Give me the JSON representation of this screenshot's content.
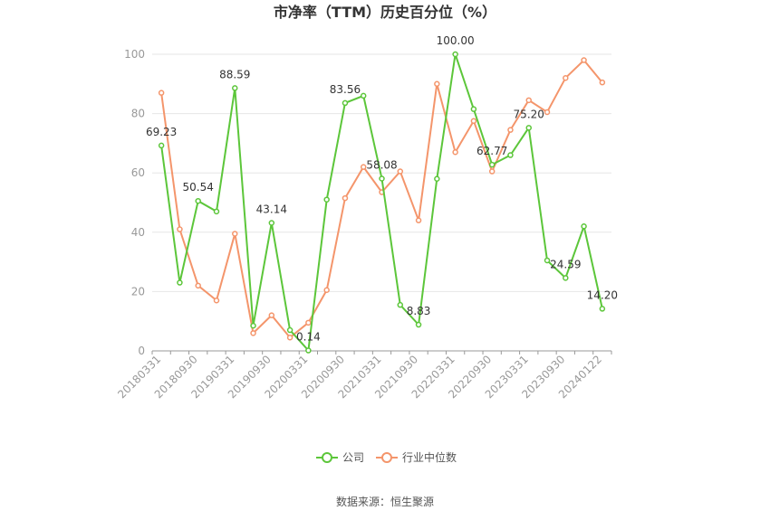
{
  "chart_data": {
    "type": "line",
    "title": "市净率（TTM）历史百分位（%）",
    "x": [
      "20180331",
      "20180630",
      "20180930",
      "20181231",
      "20190331",
      "20190630",
      "20190930",
      "20191231",
      "20200331",
      "20200630",
      "20200930",
      "20201231",
      "20210331",
      "20210630",
      "20210930",
      "20211231",
      "20220331",
      "20220630",
      "20220930",
      "20221231",
      "20230331",
      "20230630",
      "20230930",
      "20231231",
      "20240122"
    ],
    "x_tick_labels": [
      "20180331",
      "20180930",
      "20190331",
      "20190930",
      "20200331",
      "20200930",
      "20210331",
      "20210930",
      "20220331",
      "20220930",
      "20230331",
      "20230930",
      "20240122"
    ],
    "y_ticks": [
      "0",
      "20",
      "40",
      "60",
      "80",
      "100"
    ],
    "ylim": [
      0,
      100
    ],
    "grid": true,
    "legend_position": "bottom",
    "series": [
      {
        "name": "公司",
        "color": "#5cc63a",
        "values": [
          69.23,
          23,
          50.54,
          47,
          88.59,
          8.5,
          43.14,
          7,
          0.14,
          51,
          83.56,
          86,
          58.08,
          15.5,
          8.83,
          58,
          100.0,
          81.5,
          62.77,
          66,
          75.2,
          30.5,
          24.59,
          42,
          14.2
        ],
        "labels": [
          "69.23",
          "",
          "50.54",
          "",
          "88.59",
          "",
          "43.14",
          "",
          "0.14",
          "",
          "83.56",
          "",
          "58.08",
          "",
          "8.83",
          "",
          "100.00",
          "",
          "62.77",
          "",
          "75.20",
          "",
          "24.59",
          "",
          "14.20"
        ]
      },
      {
        "name": "行业中位数",
        "color": "#f4956b",
        "values": [
          87,
          41,
          22,
          17,
          39.5,
          6,
          12,
          4.5,
          9.5,
          20.5,
          51.5,
          62,
          53.5,
          60.5,
          44,
          90,
          67,
          77.5,
          60.5,
          74.5,
          84.5,
          80.5,
          92,
          98,
          90.5
        ]
      }
    ]
  },
  "source_text": "数据来源：恒生聚源"
}
